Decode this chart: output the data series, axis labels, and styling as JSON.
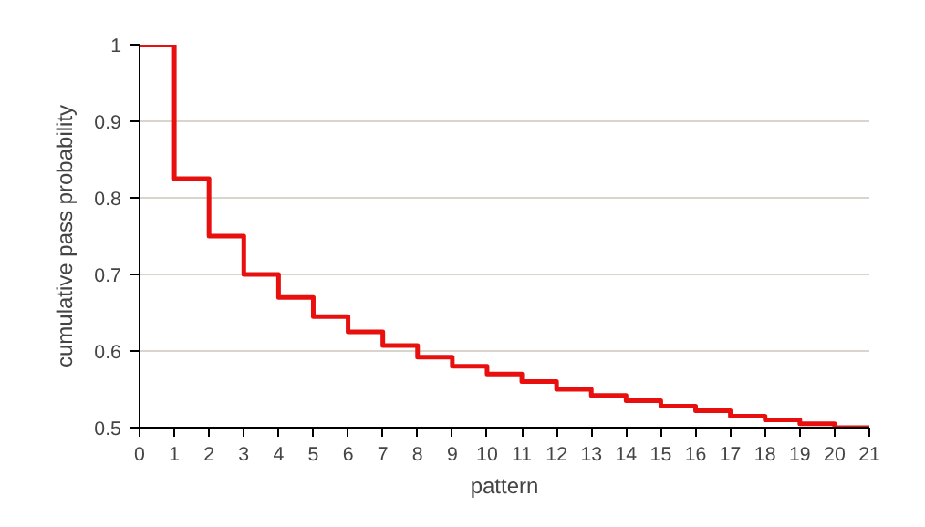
{
  "chart_data": {
    "type": "step",
    "xlabel": "pattern",
    "ylabel": "cumulative pass probability",
    "x": [
      0,
      1,
      2,
      3,
      4,
      5,
      6,
      7,
      8,
      9,
      10,
      11,
      12,
      13,
      14,
      15,
      16,
      17,
      18,
      19,
      20,
      21
    ],
    "series": [
      {
        "color": "#e8100f",
        "values": [
          1.0,
          0.825,
          0.75,
          0.7,
          0.67,
          0.645,
          0.625,
          0.607,
          0.592,
          0.58,
          0.57,
          0.56,
          0.55,
          0.542,
          0.535,
          0.528,
          0.522,
          0.515,
          0.51,
          0.505,
          0.5,
          0.5
        ]
      }
    ],
    "xlim": [
      0,
      21
    ],
    "ylim": [
      0.5,
      1
    ],
    "xticks": [
      0,
      1,
      2,
      3,
      4,
      5,
      6,
      7,
      8,
      9,
      10,
      11,
      12,
      13,
      14,
      15,
      16,
      17,
      18,
      19,
      20,
      21
    ],
    "yticks": [
      0.5,
      0.6,
      0.7,
      0.8,
      0.9,
      1
    ],
    "grid": "y",
    "line_style": "solid"
  }
}
